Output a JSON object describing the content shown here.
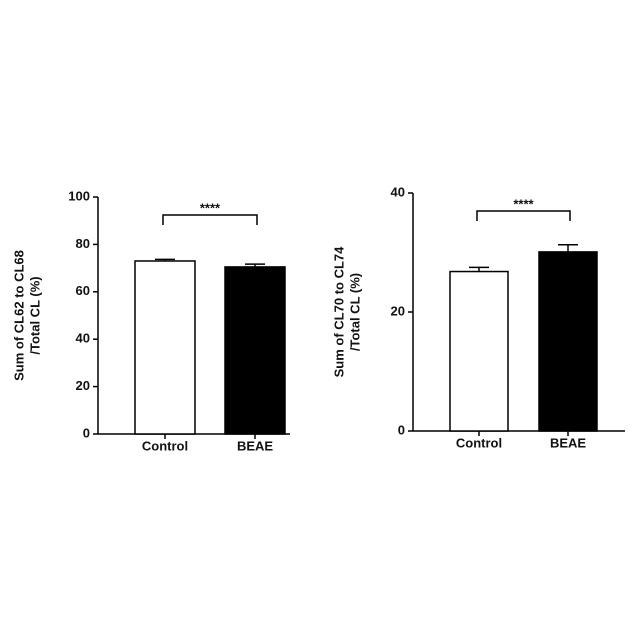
{
  "chart_data": [
    {
      "type": "bar",
      "ylabel": [
        "Sum of CL62 to CL68",
        "/Total CL (%)"
      ],
      "categories": [
        "Control",
        "BEAE"
      ],
      "values": [
        73,
        70.5
      ],
      "errors": [
        0.7,
        1.2
      ],
      "colors": [
        "#ffffff",
        "#000000"
      ],
      "ylim": [
        0,
        100
      ],
      "yticks": [
        0,
        20,
        40,
        60,
        80,
        100
      ],
      "annotation": "****"
    },
    {
      "type": "bar",
      "ylabel": [
        "Sum of CL70 to CL74",
        "/Total CL (%)"
      ],
      "categories": [
        "Control",
        "BEAE"
      ],
      "values": [
        26.8,
        30.1
      ],
      "errors": [
        0.7,
        1.2
      ],
      "colors": [
        "#ffffff",
        "#000000"
      ],
      "ylim": [
        0,
        40
      ],
      "yticks": [
        0,
        20,
        40
      ],
      "annotation": "****"
    }
  ]
}
